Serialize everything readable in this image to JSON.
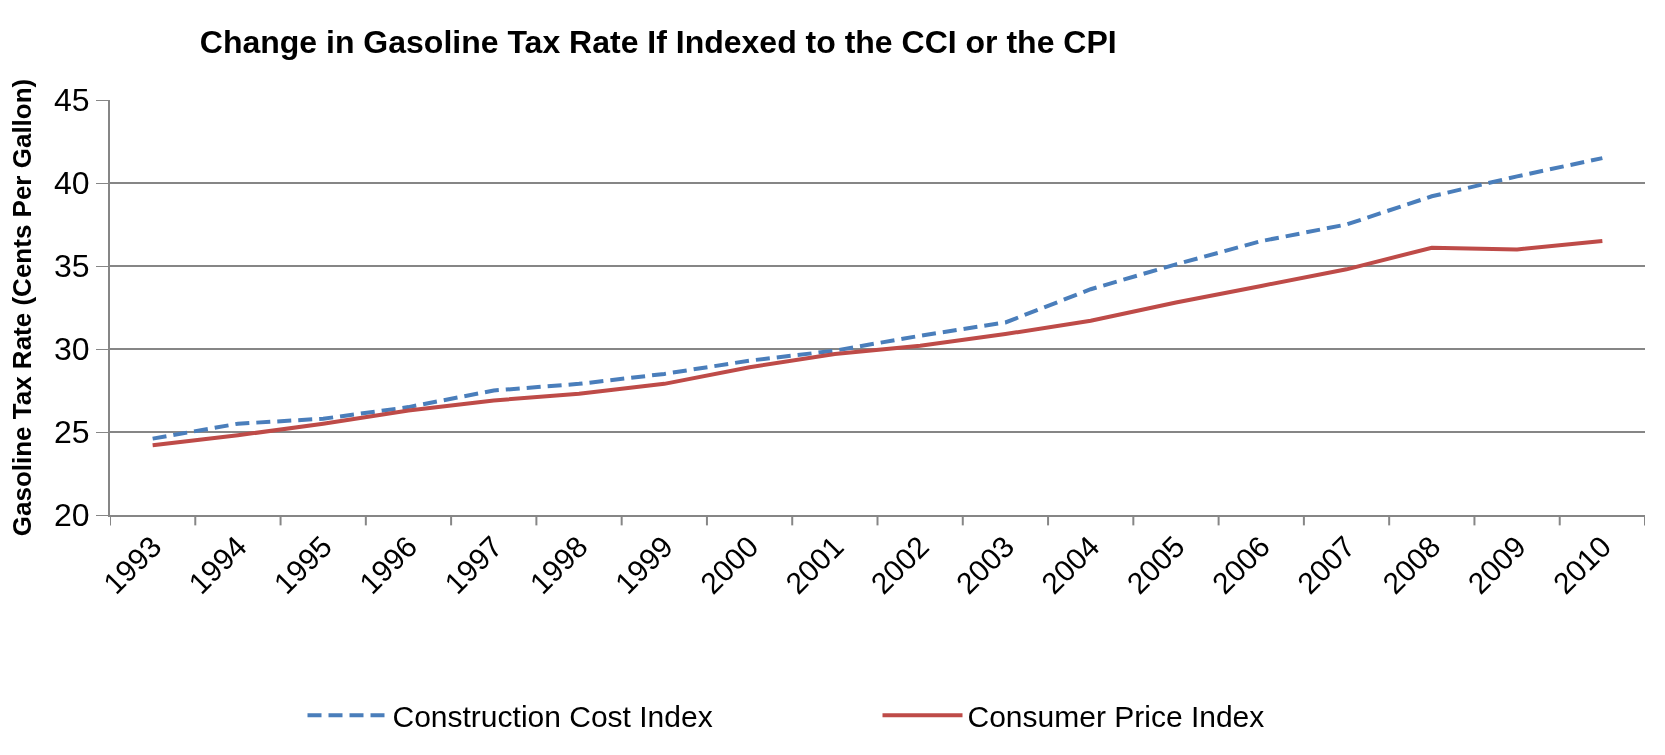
{
  "chart_data": {
    "type": "line",
    "title": "Change in Gasoline Tax Rate If Indexed to the CCI or the CPI",
    "ylabel": "Gasoline Tax Rate (Cents Per Gallon)",
    "categories": [
      "1993",
      "1994",
      "1995",
      "1996",
      "1997",
      "1998",
      "1999",
      "2000",
      "2001",
      "2002",
      "2003",
      "2004",
      "2005",
      "2006",
      "2007",
      "2008",
      "2009",
      "2010"
    ],
    "series": [
      {
        "name": "Construction Cost Index",
        "color": "#4a7ebb",
        "line_style": "dashed",
        "values": [
          24.6,
          25.5,
          25.8,
          26.5,
          27.5,
          27.9,
          28.5,
          29.3,
          29.9,
          30.8,
          31.6,
          33.6,
          35.1,
          36.5,
          37.5,
          39.2,
          40.4,
          41.5
        ]
      },
      {
        "name": "Consumer Price Index",
        "color": "#be4b48",
        "line_style": "solid",
        "values": [
          24.2,
          24.8,
          25.5,
          26.3,
          26.9,
          27.3,
          27.9,
          28.9,
          29.7,
          30.2,
          30.9,
          31.7,
          32.8,
          33.8,
          34.8,
          36.1,
          36.0,
          36.5
        ]
      }
    ],
    "ylim": [
      20,
      45
    ],
    "yticks": [
      20,
      25,
      30,
      35,
      40,
      45
    ],
    "grid": "y",
    "legend": "bottom",
    "marker": "none"
  }
}
